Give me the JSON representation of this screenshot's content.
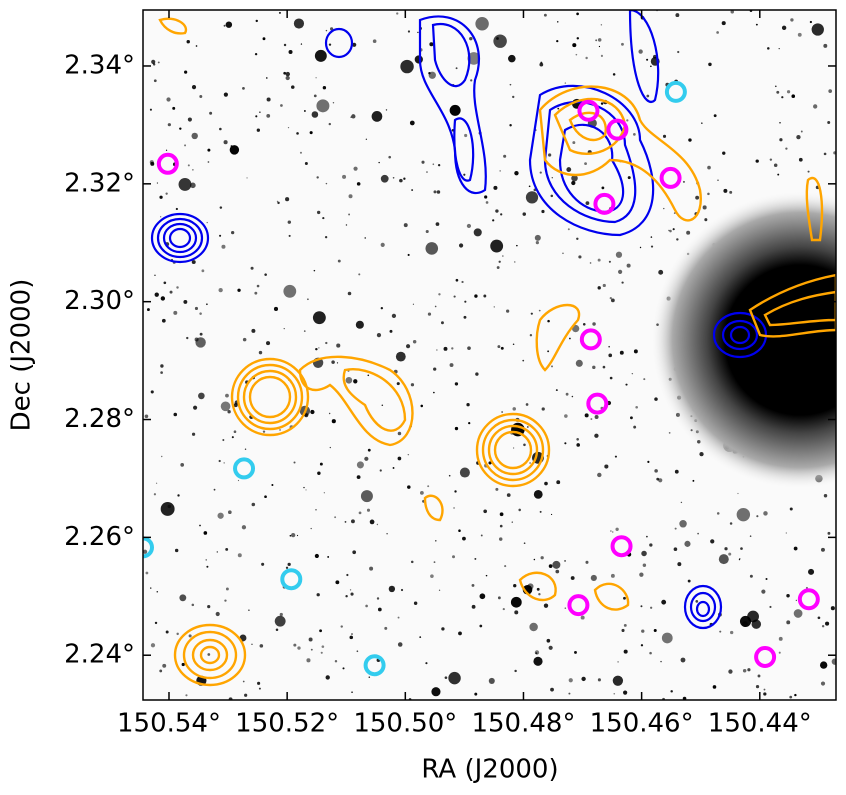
{
  "chart_data": {
    "type": "scatter",
    "xlabel": "RA (J2000)",
    "ylabel": "Dec (J2000)",
    "xlim": [
      150.5444,
      150.4271
    ],
    "ylim": [
      2.2324,
      2.3495
    ],
    "xticks": [
      {
        "value": 150.54,
        "label": "150.54°"
      },
      {
        "value": 150.52,
        "label": "150.52°"
      },
      {
        "value": 150.5,
        "label": "150.50°"
      },
      {
        "value": 150.48,
        "label": "150.48°"
      },
      {
        "value": 150.46,
        "label": "150.46°"
      },
      {
        "value": 150.44,
        "label": "150.44°"
      }
    ],
    "yticks": [
      {
        "value": 2.24,
        "label": "2.24°"
      },
      {
        "value": 2.26,
        "label": "2.26°"
      },
      {
        "value": 2.28,
        "label": "2.28°"
      },
      {
        "value": 2.3,
        "label": "2.30°"
      },
      {
        "value": 2.32,
        "label": "2.32°"
      },
      {
        "value": 2.34,
        "label": "2.34°"
      }
    ],
    "series": [
      {
        "color": "#ff00ff",
        "x": [
          150.5402,
          150.469,
          150.4641,
          150.4551,
          150.4663,
          150.4686,
          150.4675,
          150.4634,
          150.4707,
          150.4317,
          150.4391
        ],
        "y": [
          2.3234,
          2.3324,
          2.3292,
          2.321,
          2.3166,
          2.2936,
          2.2827,
          2.2585,
          2.2485,
          2.2495,
          2.2397
        ]
      },
      {
        "color": "#33ccee",
        "x": [
          150.4542,
          150.5273,
          150.5444,
          150.5193,
          150.5052
        ],
        "y": [
          2.3356,
          2.2717,
          2.2583,
          2.2529,
          2.2383
        ]
      }
    ]
  }
}
